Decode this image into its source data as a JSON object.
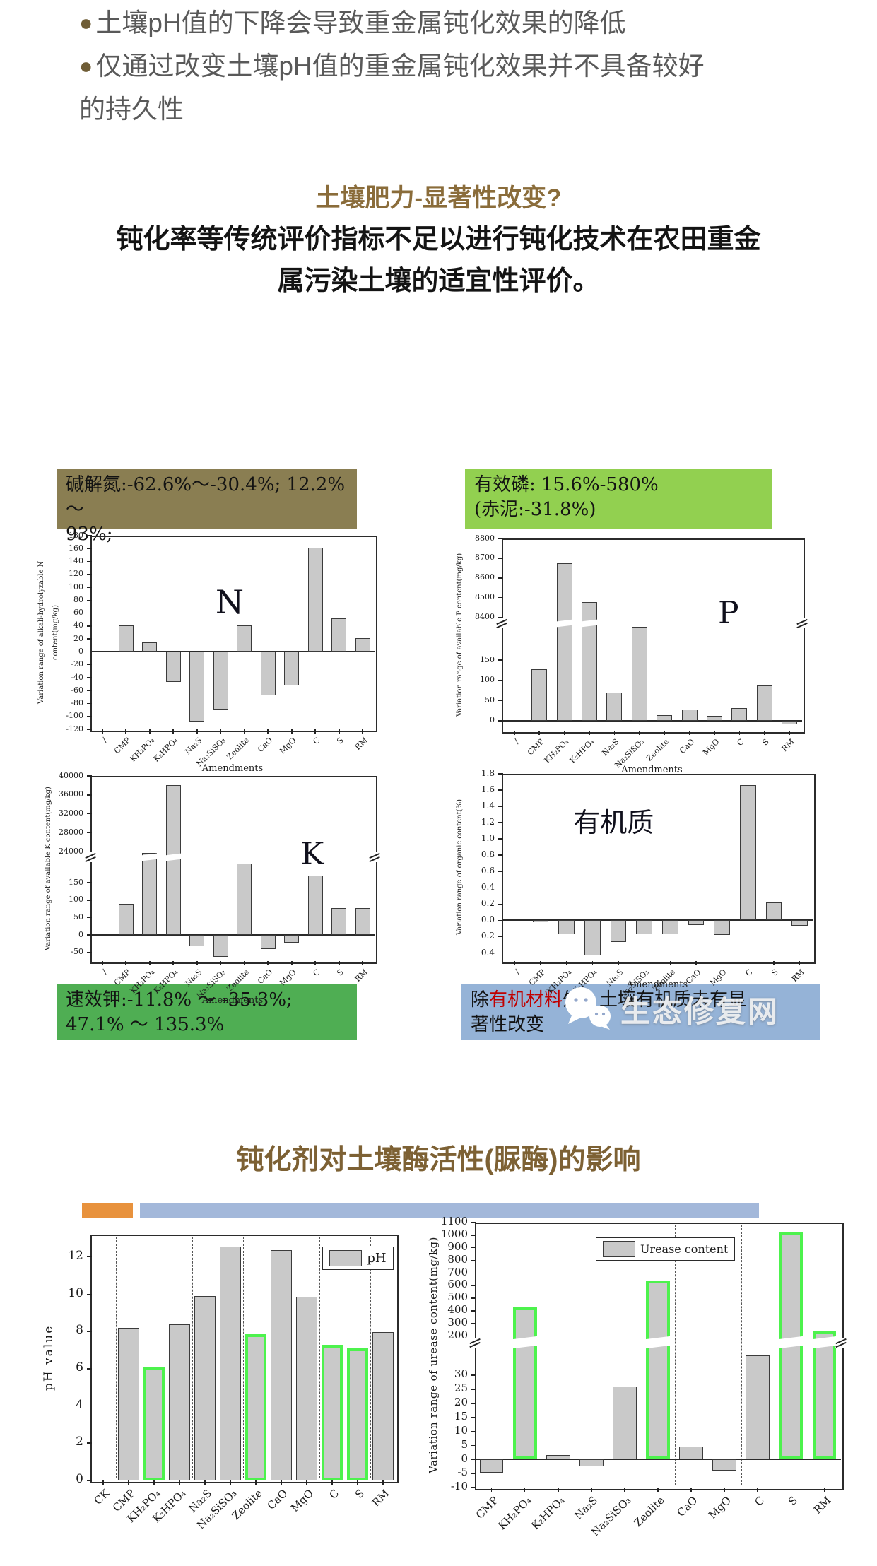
{
  "page": {
    "bullet_dot": "●",
    "bullets": {
      "b1": "土壤pH值的下降会导致重金属钝化效果的降低",
      "b2_line1": "仅通过改变土壤pH值的重金属钝化效果并不具备较好",
      "b2_line2": "的持久性"
    },
    "section1_title": "土壤肥力-显著性改变?",
    "lead_line1": "钝化率等传统评价指标不足以进行钝化技术在农田重金",
    "lead_line2": "属污染土壤的适宜性评价。",
    "section2_title": "钝化剂对土壤酶活性(脲酶)的影响",
    "watermark_text": "生态修复网"
  },
  "boxes": {
    "n": {
      "line1": "碱解氮:-62.6%～-30.4%; 12.2% ～",
      "line2": "93%;"
    },
    "p": {
      "line1": "有效磷: 15.6%-580%",
      "line2": "(赤泥:-31.8%)"
    },
    "k": {
      "line1": "速效钾:-11.8% ～ -35.3%;",
      "line2": "47.1% ～ 135.3%"
    },
    "om": {
      "pre": "除",
      "red": "有机材料",
      "post": "外，土壤有机质未有显",
      "line2": "著性改变"
    }
  },
  "colors": {
    "heading_brown": "#8a6c3a",
    "heading2_brown": "#7d6134",
    "bullet_text": "#595959",
    "olive_box": "#8a7e52",
    "light_green_box": "#92d050",
    "green_box": "#4fae53",
    "blue_box": "#95b3d7",
    "orange_bar": "#e8923d",
    "blue_bar": "#a3b8da",
    "bar_fill": "#c9c9c9",
    "bar_edge": "#3b3b3b",
    "green_bar_edge": "#4df24d",
    "red_text": "#c00000"
  },
  "chart_data": [
    {
      "id": "n",
      "type": "bar",
      "title": {
        "text": "N",
        "fx": 0.44,
        "fy": 0.26,
        "size": 46
      },
      "ylabel": "Variation range of alkali-hydrolyzable N content(mg/kg)",
      "xlabel": "Amendments",
      "categories": [
        "/",
        "CMP",
        "KH₂PO₄",
        "K₂HPO₄",
        "Na₂S",
        "Na₂SiSO₃",
        "Zeolite",
        "CaO",
        "MgO",
        "C",
        "S",
        "RM"
      ],
      "values": [
        null,
        41,
        15,
        -47,
        -108,
        -89,
        41,
        -67,
        -52,
        161,
        52,
        21
      ],
      "green": [],
      "ylim": [
        -120,
        180
      ],
      "segments": [
        {
          "v0": -120,
          "v1": 180,
          "f0": 0,
          "f1": 1
        }
      ],
      "yticks": [
        [
          180,
          "180"
        ],
        [
          160,
          "160"
        ],
        [
          140,
          "140"
        ],
        [
          120,
          "120"
        ],
        [
          100,
          "100"
        ],
        [
          80,
          "80"
        ],
        [
          60,
          "60"
        ],
        [
          40,
          "40"
        ],
        [
          20,
          "20"
        ],
        [
          0,
          "0"
        ],
        [
          -20,
          "-20"
        ],
        [
          -40,
          "-40"
        ],
        [
          -60,
          "-60"
        ],
        [
          -80,
          "-80"
        ],
        [
          -100,
          "-100"
        ],
        [
          -120,
          "-120"
        ]
      ],
      "zeroline": true,
      "grid_after": [],
      "break_band": null,
      "legend": null
    },
    {
      "id": "p",
      "type": "bar",
      "title": {
        "text": "P",
        "fx": 0.72,
        "fy": 0.31,
        "size": 44
      },
      "ylabel": "Variation range of available P content(mg/kg)",
      "xlabel": "Amendments",
      "categories": [
        "/",
        "CMP",
        "KH₂PO₄",
        "K₂HPO₄",
        "Na₂S",
        "Na₂SiSO₃",
        "Zeolite",
        "CaO",
        "MgO",
        "C",
        "S",
        "RM"
      ],
      "values": [
        null,
        128,
        8675,
        8478,
        70,
        232,
        13,
        27,
        11,
        31,
        88,
        -10
      ],
      "green": [],
      "ylim_lower": [
        -25,
        235
      ],
      "ylim_upper": [
        8385,
        8800
      ],
      "segments": [
        {
          "v0": -25,
          "v1": 235,
          "f0": 0,
          "f1": 0.545
        },
        {
          "v0": 8385,
          "v1": 8800,
          "f0": 0.575,
          "f1": 1
        }
      ],
      "yticks": [
        [
          8800,
          "8800"
        ],
        [
          8700,
          "8700"
        ],
        [
          8600,
          "8600"
        ],
        [
          8500,
          "8500"
        ],
        [
          8400,
          "8400"
        ],
        [
          150,
          "150"
        ],
        [
          100,
          "100"
        ],
        [
          50,
          "50"
        ],
        [
          0,
          "0"
        ]
      ],
      "zeroline": true,
      "grid_after": [],
      "break_band": [
        0.545,
        0.575
      ],
      "legend": null
    },
    {
      "id": "k",
      "type": "bar",
      "title": {
        "text": "K",
        "fx": 0.74,
        "fy": 0.34,
        "size": 44
      },
      "ylabel": "Variation range of available K content(mg/kg)",
      "xlabel": "Amendments",
      "categories": [
        "/",
        "CMP",
        "KH₂PO₄",
        "K₂HPO₄",
        "Na₂S",
        "Na₂SiSO₃",
        "Zeolite",
        "CaO",
        "MgO",
        "C",
        "S",
        "RM"
      ],
      "values": [
        null,
        90,
        23700,
        38000,
        -32,
        -62,
        205,
        -40,
        -22,
        170,
        78,
        78
      ],
      "green": [],
      "ylim_lower": [
        -75,
        215
      ],
      "ylim_upper": [
        23400,
        40000
      ],
      "segments": [
        {
          "v0": -75,
          "v1": 215,
          "f0": 0,
          "f1": 0.545
        },
        {
          "v0": 23400,
          "v1": 40000,
          "f0": 0.575,
          "f1": 1
        }
      ],
      "yticks": [
        [
          40000,
          "40000"
        ],
        [
          36000,
          "36000"
        ],
        [
          32000,
          "32000"
        ],
        [
          28000,
          "28000"
        ],
        [
          24000,
          "24000"
        ],
        [
          150,
          "150"
        ],
        [
          100,
          "100"
        ],
        [
          50,
          "50"
        ],
        [
          0,
          "0"
        ],
        [
          -50,
          "-50"
        ]
      ],
      "zeroline": true,
      "grid_after": [],
      "break_band": [
        0.545,
        0.575
      ],
      "legend": null
    },
    {
      "id": "om",
      "type": "bar",
      "title": {
        "text": "有机质",
        "fx": 0.23,
        "fy": 0.19,
        "size": 38
      },
      "ylabel": "Variation range of organic content(%)",
      "xlabel": "Amendments",
      "categories": [
        "/",
        "CMP",
        "KH₂PO₄",
        "K₂HPO₄",
        "Na₂S",
        "Na₂SiSO₃",
        "Zeolite",
        "CaO",
        "MgO",
        "C",
        "S",
        "RM"
      ],
      "values": [
        null,
        -0.02,
        -0.17,
        -0.43,
        -0.27,
        -0.17,
        -0.17,
        -0.06,
        -0.18,
        1.66,
        0.22,
        -0.07
      ],
      "green": [],
      "ylim": [
        -0.5,
        1.8
      ],
      "segments": [
        {
          "v0": -0.5,
          "v1": 1.8,
          "f0": 0,
          "f1": 1
        }
      ],
      "yticks": [
        [
          1.8,
          "1.8"
        ],
        [
          1.6,
          "1.6"
        ],
        [
          1.4,
          "1.4"
        ],
        [
          1.2,
          "1.2"
        ],
        [
          1.0,
          "1.0"
        ],
        [
          0.8,
          "0.8"
        ],
        [
          0.6,
          "0.6"
        ],
        [
          0.4,
          "0.4"
        ],
        [
          0.2,
          "0.2"
        ],
        [
          0.0,
          "0.0"
        ],
        [
          -0.2,
          "-0.2"
        ],
        [
          -0.4,
          "-0.4"
        ]
      ],
      "zeroline": true,
      "grid_after": [],
      "break_band": null,
      "legend": null
    },
    {
      "id": "ph",
      "type": "bar",
      "title": null,
      "ylabel": "pH value",
      "xlabel": null,
      "categories": [
        "CK",
        "CMP",
        "KH₂PO₄",
        "K₂HPO₄",
        "Na₂S",
        "Na₂SiSO₃",
        "Zeolite",
        "CaO",
        "MgO",
        "C",
        "S",
        "RM"
      ],
      "values": [
        null,
        8.2,
        6.1,
        8.4,
        9.9,
        12.55,
        7.85,
        12.35,
        9.85,
        7.3,
        7.1,
        7.95
      ],
      "green": [
        2,
        6,
        9,
        10
      ],
      "ylim": [
        0,
        13.2
      ],
      "segments": [
        {
          "v0": 0,
          "v1": 13.2,
          "f0": 0,
          "f1": 1
        }
      ],
      "yticks": [
        [
          12,
          "12"
        ],
        [
          10,
          "10"
        ],
        [
          8,
          "8"
        ],
        [
          6,
          "6"
        ],
        [
          4,
          "4"
        ],
        [
          2,
          "2"
        ],
        [
          0,
          "0"
        ]
      ],
      "zeroline": false,
      "grid_after": [
        0,
        3,
        5,
        6,
        8,
        10
      ],
      "break_band": null,
      "legend": {
        "label": "pH",
        "fx": 0.76,
        "fy": 0.05
      }
    },
    {
      "id": "ur",
      "type": "bar",
      "title": null,
      "ylabel": "Variation range of urease content(mg/kg)",
      "xlabel": null,
      "categories": [
        "CMP",
        "KH₂PO₄",
        "K₂HPO₄",
        "Na₂S",
        "Na₂SiSO₃",
        "Zeolite",
        "CaO",
        "MgO",
        "C",
        "S",
        "RM"
      ],
      "values": [
        -4.8,
        425,
        1.5,
        -2.5,
        26,
        640,
        4.7,
        -4,
        37,
        1020,
        240
      ],
      "green": [
        1,
        5,
        9,
        10
      ],
      "ylim_lower": [
        -10,
        40
      ],
      "ylim_upper": [
        185,
        1100
      ],
      "segments": [
        {
          "v0": -10,
          "v1": 40,
          "f0": 0,
          "f1": 0.53
        },
        {
          "v0": 185,
          "v1": 1100,
          "f0": 0.565,
          "f1": 1
        }
      ],
      "yticks": [
        [
          1100,
          "1100"
        ],
        [
          1000,
          "1000"
        ],
        [
          900,
          "900"
        ],
        [
          800,
          "800"
        ],
        [
          700,
          "700"
        ],
        [
          600,
          "600"
        ],
        [
          500,
          "500"
        ],
        [
          400,
          "400"
        ],
        [
          300,
          "300"
        ],
        [
          200,
          "200"
        ],
        [
          30,
          "30"
        ],
        [
          25,
          "25"
        ],
        [
          20,
          "20"
        ],
        [
          15,
          "15"
        ],
        [
          10,
          "10"
        ],
        [
          5,
          "5"
        ],
        [
          0,
          "0"
        ],
        [
          -5,
          "-5"
        ],
        [
          -10,
          "-10"
        ]
      ],
      "zeroline": true,
      "grid_after": [
        2,
        3,
        5,
        7,
        9
      ],
      "break_band": [
        0.53,
        0.565
      ],
      "legend": {
        "label": "Urease content",
        "fx": 0.33,
        "fy": 0.055
      }
    }
  ]
}
